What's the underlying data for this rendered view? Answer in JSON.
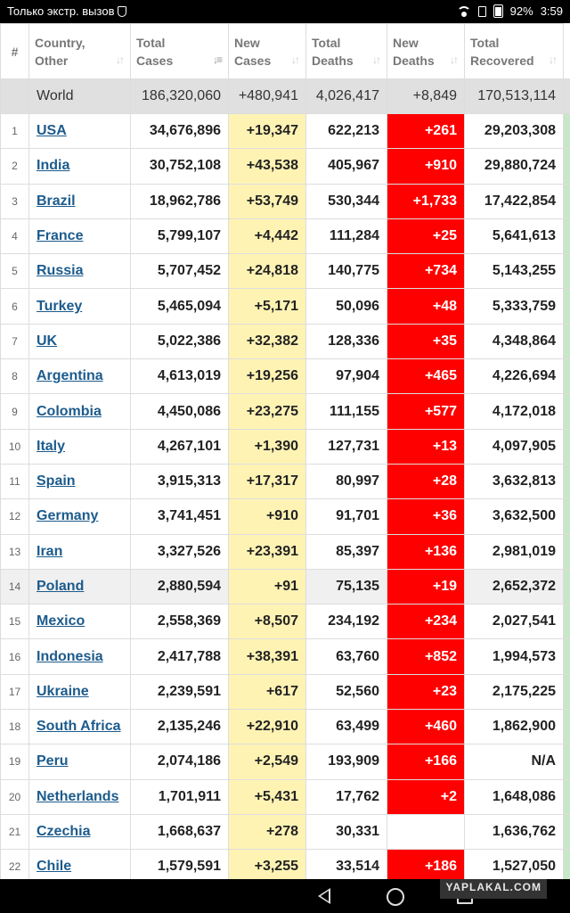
{
  "status_bar": {
    "carrier_text": "Только экстр. вызов",
    "battery": "92%",
    "time": "3:59"
  },
  "table": {
    "headers": {
      "rank": "#",
      "country": "Country,\nOther",
      "total_cases": "Total\nCases",
      "new_cases": "New\nCases",
      "total_deaths": "Total\nDeaths",
      "new_deaths": "New\nDeaths",
      "total_recovered": "Total\nRecovered"
    },
    "world": {
      "country": "World",
      "total_cases": "186,320,060",
      "new_cases": "+480,941",
      "total_deaths": "4,026,417",
      "new_deaths": "+8,849",
      "total_recovered": "170,513,114"
    },
    "rows": [
      {
        "rank": "1",
        "country": "USA",
        "total_cases": "34,676,896",
        "new_cases": "+19,347",
        "total_deaths": "622,213",
        "new_deaths": "+261",
        "total_recovered": "29,203,308"
      },
      {
        "rank": "2",
        "country": "India",
        "total_cases": "30,752,108",
        "new_cases": "+43,538",
        "total_deaths": "405,967",
        "new_deaths": "+910",
        "total_recovered": "29,880,724"
      },
      {
        "rank": "3",
        "country": "Brazil",
        "total_cases": "18,962,786",
        "new_cases": "+53,749",
        "total_deaths": "530,344",
        "new_deaths": "+1,733",
        "total_recovered": "17,422,854"
      },
      {
        "rank": "4",
        "country": "France",
        "total_cases": "5,799,107",
        "new_cases": "+4,442",
        "total_deaths": "111,284",
        "new_deaths": "+25",
        "total_recovered": "5,641,613"
      },
      {
        "rank": "5",
        "country": "Russia",
        "total_cases": "5,707,452",
        "new_cases": "+24,818",
        "total_deaths": "140,775",
        "new_deaths": "+734",
        "total_recovered": "5,143,255"
      },
      {
        "rank": "6",
        "country": "Turkey",
        "total_cases": "5,465,094",
        "new_cases": "+5,171",
        "total_deaths": "50,096",
        "new_deaths": "+48",
        "total_recovered": "5,333,759"
      },
      {
        "rank": "7",
        "country": "UK",
        "total_cases": "5,022,386",
        "new_cases": "+32,382",
        "total_deaths": "128,336",
        "new_deaths": "+35",
        "total_recovered": "4,348,864"
      },
      {
        "rank": "8",
        "country": "Argentina",
        "total_cases": "4,613,019",
        "new_cases": "+19,256",
        "total_deaths": "97,904",
        "new_deaths": "+465",
        "total_recovered": "4,226,694"
      },
      {
        "rank": "9",
        "country": "Colombia",
        "total_cases": "4,450,086",
        "new_cases": "+23,275",
        "total_deaths": "111,155",
        "new_deaths": "+577",
        "total_recovered": "4,172,018"
      },
      {
        "rank": "10",
        "country": "Italy",
        "total_cases": "4,267,101",
        "new_cases": "+1,390",
        "total_deaths": "127,731",
        "new_deaths": "+13",
        "total_recovered": "4,097,905"
      },
      {
        "rank": "11",
        "country": "Spain",
        "total_cases": "3,915,313",
        "new_cases": "+17,317",
        "total_deaths": "80,997",
        "new_deaths": "+28",
        "total_recovered": "3,632,813"
      },
      {
        "rank": "12",
        "country": "Germany",
        "total_cases": "3,741,451",
        "new_cases": "+910",
        "total_deaths": "91,701",
        "new_deaths": "+36",
        "total_recovered": "3,632,500"
      },
      {
        "rank": "13",
        "country": "Iran",
        "total_cases": "3,327,526",
        "new_cases": "+23,391",
        "total_deaths": "85,397",
        "new_deaths": "+136",
        "total_recovered": "2,981,019"
      },
      {
        "rank": "14",
        "country": "Poland",
        "total_cases": "2,880,594",
        "new_cases": "+91",
        "total_deaths": "75,135",
        "new_deaths": "+19",
        "total_recovered": "2,652,372"
      },
      {
        "rank": "15",
        "country": "Mexico",
        "total_cases": "2,558,369",
        "new_cases": "+8,507",
        "total_deaths": "234,192",
        "new_deaths": "+234",
        "total_recovered": "2,027,541"
      },
      {
        "rank": "16",
        "country": "Indonesia",
        "total_cases": "2,417,788",
        "new_cases": "+38,391",
        "total_deaths": "63,760",
        "new_deaths": "+852",
        "total_recovered": "1,994,573"
      },
      {
        "rank": "17",
        "country": "Ukraine",
        "total_cases": "2,239,591",
        "new_cases": "+617",
        "total_deaths": "52,560",
        "new_deaths": "+23",
        "total_recovered": "2,175,225"
      },
      {
        "rank": "18",
        "country": "South Africa",
        "total_cases": "2,135,246",
        "new_cases": "+22,910",
        "total_deaths": "63,499",
        "new_deaths": "+460",
        "total_recovered": "1,862,900"
      },
      {
        "rank": "19",
        "country": "Peru",
        "total_cases": "2,074,186",
        "new_cases": "+2,549",
        "total_deaths": "193,909",
        "new_deaths": "+166",
        "total_recovered": "N/A"
      },
      {
        "rank": "20",
        "country": "Netherlands",
        "total_cases": "1,701,911",
        "new_cases": "+5,431",
        "total_deaths": "17,762",
        "new_deaths": "+2",
        "total_recovered": "1,648,086"
      },
      {
        "rank": "21",
        "country": "Czechia",
        "total_cases": "1,668,637",
        "new_cases": "+278",
        "total_deaths": "30,331",
        "new_deaths": "",
        "total_recovered": "1,636,762"
      },
      {
        "rank": "22",
        "country": "Chile",
        "total_cases": "1,579,591",
        "new_cases": "+3,255",
        "total_deaths": "33,514",
        "new_deaths": "+186",
        "total_recovered": "1,527,050"
      }
    ],
    "highlighted_row": "14"
  },
  "watermark": "YAPLAKAL.COM",
  "colors": {
    "new_cases_bg": "#fff3b4",
    "new_deaths_bg": "#ff0000",
    "link": "#1c5b8c",
    "world_row_bg": "#e0e0e0"
  }
}
